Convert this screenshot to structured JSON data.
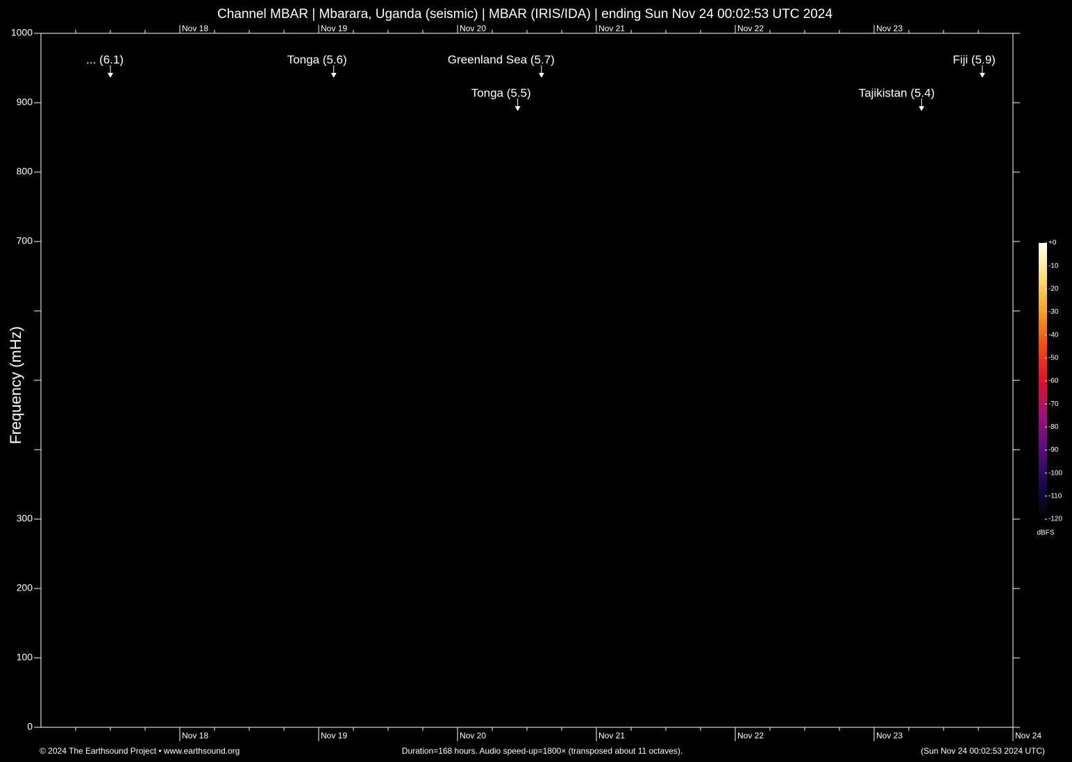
{
  "chart_data": {
    "type": "spectrogram",
    "title": "Channel MBAR | Mbarara, Uganda (seismic) | MBAR (IRIS/IDA) | ending Sun Nov 24 00:02:53 UTC 2024",
    "y_label": "Frequency (mHz)",
    "xlim": [
      0,
      168
    ],
    "xticks": [
      {
        "value": 24,
        "label": "Nov 18"
      },
      {
        "value": 48,
        "label": "Nov 19"
      },
      {
        "value": 72,
        "label": "Nov 20"
      },
      {
        "value": 96,
        "label": "Nov 21"
      },
      {
        "value": 120,
        "label": "Nov 22"
      },
      {
        "value": 144,
        "label": "Nov 23"
      },
      {
        "value": 168,
        "label": "Nov 24"
      }
    ],
    "xminor_step": 6,
    "ylim": [
      0,
      1000
    ],
    "yticks": [
      0,
      100,
      200,
      300,
      700,
      800,
      900,
      1000
    ],
    "yminor_ticks": [
      400,
      500,
      600
    ],
    "annotations": [
      {
        "text": "... (6.1)",
        "x": 12,
        "y": 936
      },
      {
        "text": "Tonga (5.6)",
        "x": 50.6,
        "y": 936
      },
      {
        "text": "Greenland Sea (5.7)",
        "x": 86.5,
        "y": 936
      },
      {
        "text": "Tonga (5.5)",
        "x": 82.4,
        "y": 888
      },
      {
        "text": "Tajikistan (5.4)",
        "x": 152.2,
        "y": 888
      },
      {
        "text": "Fiji (5.9)",
        "x": 162.7,
        "y": 936
      }
    ],
    "colorbar": {
      "label": "dBFS",
      "lim": [
        -120,
        0
      ],
      "ticks": [
        {
          "value": 0,
          "label": "+0"
        },
        -10,
        -20,
        -30,
        -40,
        -50,
        -60,
        -70,
        -80,
        -90,
        -100,
        -110,
        -120
      ],
      "colormap": [
        "#000000",
        "#1a0a4a",
        "#5a0a80",
        "#a0107a",
        "#e0102a",
        "#f04a10",
        "#f8a020",
        "#fae070",
        "#fffff0"
      ]
    },
    "footer": {
      "left": "© 2024 The Earthsound Project • www.earthsound.org",
      "center": "Duration=168 hours. Audio speed-up=1800× (transposed about 11 octaves).",
      "right": "(Sun Nov 24 00:02:53 2024 UTC)"
    }
  }
}
